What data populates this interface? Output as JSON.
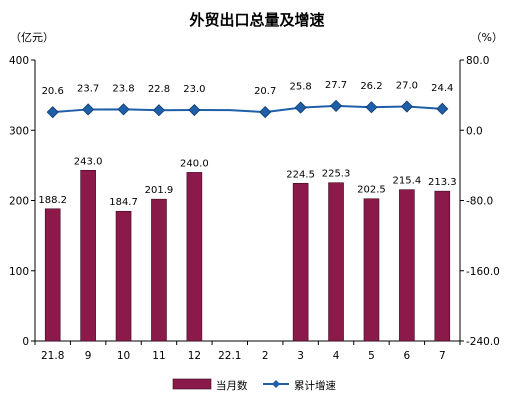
{
  "chart_data": {
    "type": "bar",
    "title": "外贸出口总量及增速",
    "y_left_unit": "（亿元）",
    "y_right_unit": "（%）",
    "categories": [
      "21.8",
      "9",
      "10",
      "11",
      "12",
      "22.1",
      "2",
      "3",
      "4",
      "5",
      "6",
      "7"
    ],
    "y_left": {
      "min": 0,
      "max": 400,
      "ticks": [
        "0",
        "100",
        "200",
        "300",
        "400"
      ]
    },
    "y_right": {
      "min": -240,
      "max": 80,
      "ticks": [
        "-240.0",
        "-160.0",
        "-80.0",
        "0.0",
        "80.0"
      ]
    },
    "series": [
      {
        "name": "当月数",
        "kind": "bar",
        "axis": "left",
        "color": "#8B1A4A",
        "values": [
          188.2,
          243.0,
          184.7,
          201.9,
          240.0,
          null,
          null,
          224.5,
          225.3,
          202.5,
          215.4,
          213.3
        ],
        "labels": [
          "188.2",
          "243.0",
          "184.7",
          "201.9",
          "240.0",
          "",
          "",
          "224.5",
          "225.3",
          "202.5",
          "215.4",
          "213.3"
        ]
      },
      {
        "name": "累计增速",
        "kind": "line",
        "axis": "right",
        "color": "#1F5FA8",
        "values": [
          20.6,
          23.7,
          23.8,
          22.8,
          23.0,
          22.9,
          20.7,
          25.8,
          27.7,
          26.2,
          27.0,
          24.4
        ],
        "labels": [
          "20.6",
          "23.7",
          "23.8",
          "22.8",
          "23.0",
          "",
          "20.7",
          "25.8",
          "27.7",
          "26.2",
          "27.0",
          "24.4"
        ],
        "markers": [
          true,
          true,
          true,
          true,
          true,
          false,
          true,
          true,
          true,
          true,
          true,
          true
        ]
      }
    ],
    "legend_position": "bottom",
    "grid": false
  }
}
